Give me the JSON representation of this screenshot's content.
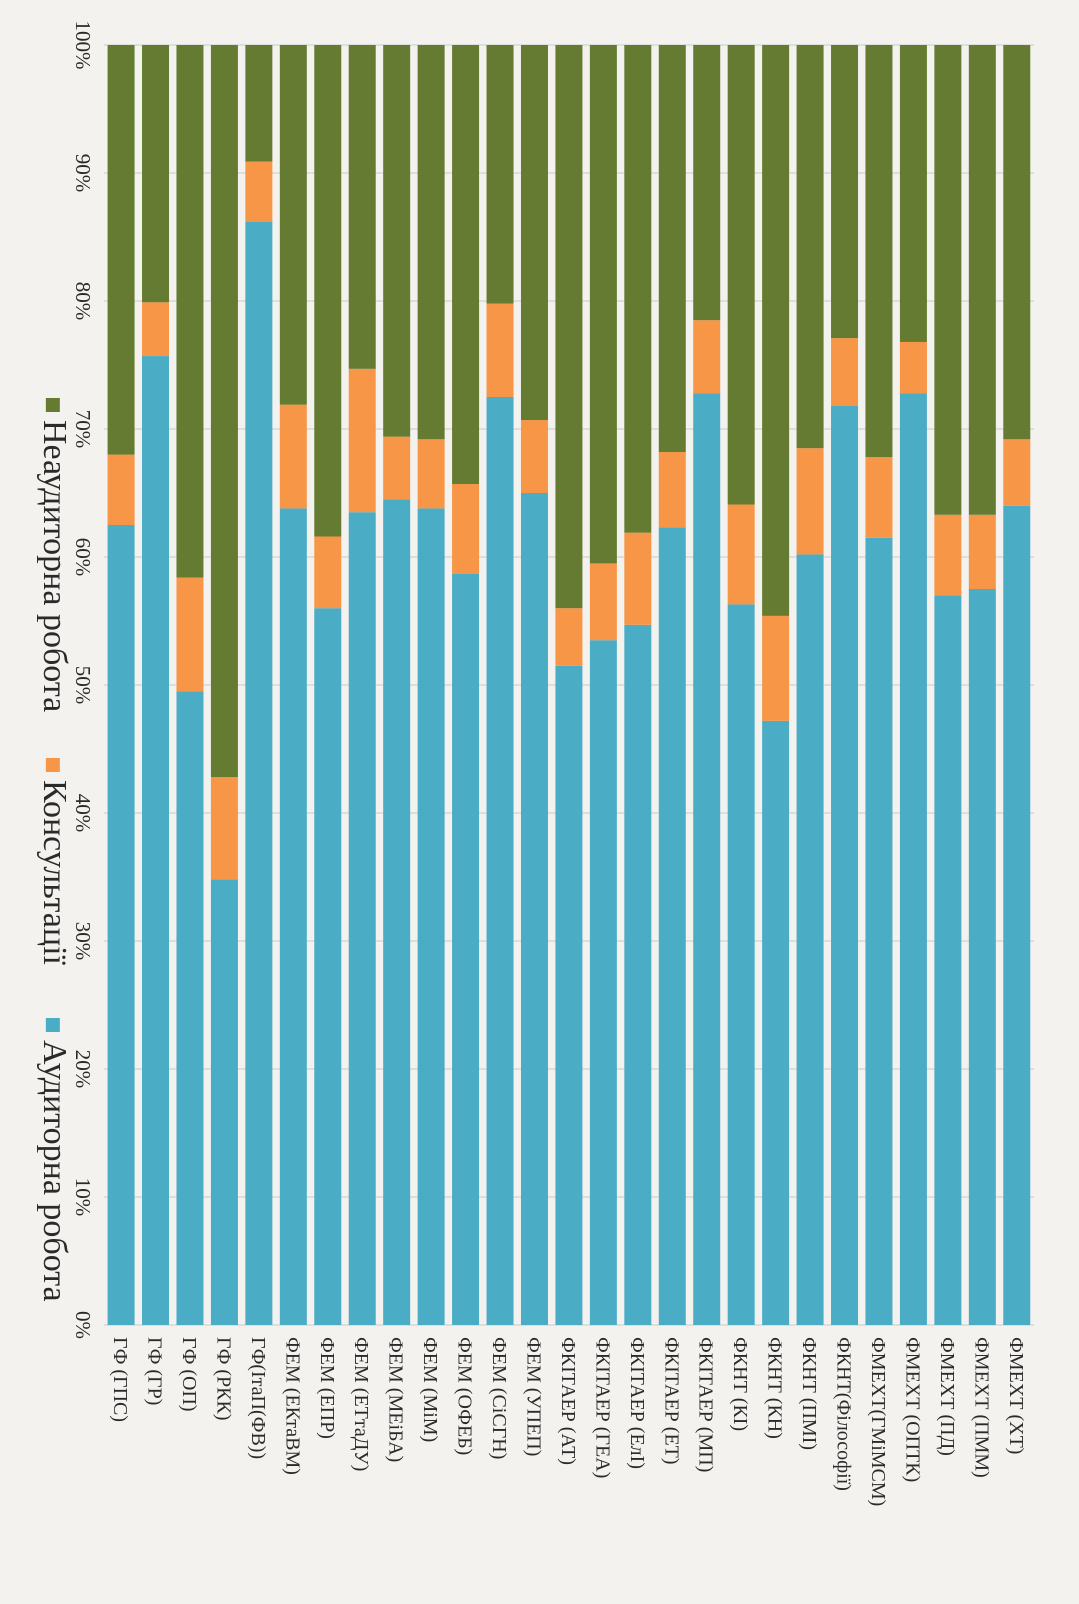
{
  "chart_data": {
    "type": "bar",
    "stacked": true,
    "orientation": "horizontal-percent, rotated 90° clockwise",
    "categories": [
      "ФМЕХТ (ХТ)",
      "ФМЕХТ (ПММ)",
      "ФМЕХТ (ПД)",
      "ФМЕХТ (ОПТК)",
      "ФМЕХТ(ГМіМСМ)",
      "ФКНТ(Філософії)",
      "ФКНТ (ПМІ)",
      "ФКНТ (КН)",
      "ФКНТ (КІ)",
      "ФКІТАЕР (МП)",
      "ФКІТАЕР (ЕТ)",
      "ФКІТАЕР (ЕлІ)",
      "ФКІТАЕР (ГЕА)",
      "ФКІТАЕР (АТ)",
      "ФЕМ (УПЕП)",
      "ФЕМ (СіСГН)",
      "ФЕМ (ОФЕБ)",
      "ФЕМ (МіМ)",
      "ФЕМ (МЕіБА)",
      "ФЕМ (ЕТтаДУ)",
      "ФЕМ (ЕПР)",
      "ФЕМ (ЕКтаВМ)",
      "ГФ(ІтаП(ФВ))",
      "ГФ (РКК)",
      "ГФ (ОП)",
      "ГФ (ГР)",
      "ГФ (ГПС)"
    ],
    "series": [
      {
        "name": "Аудиторна робота",
        "color": "#4bacc6",
        "values": [
          64,
          57.5,
          57,
          72.8,
          61.5,
          71.8,
          60.2,
          47.2,
          56.3,
          72.8,
          62.3,
          54.7,
          53.5,
          51.5,
          65,
          72.5,
          58.7,
          63.8,
          64.5,
          63.5,
          56,
          63.8,
          86.2,
          34.8,
          49.5,
          75.7,
          62.5
        ]
      },
      {
        "name": "Консультації",
        "color": "#f79646",
        "values": [
          5.2,
          5.8,
          6.3,
          4,
          6.3,
          5.3,
          8.3,
          8.2,
          7.8,
          5.7,
          5.9,
          7.2,
          6,
          4.5,
          5.7,
          7.3,
          7,
          5.4,
          4.9,
          11.2,
          5.6,
          8.1,
          4.7,
          8,
          8.9,
          4.2,
          5.5
        ]
      },
      {
        "name": "Неаудиторна робота",
        "color": "#657b32",
        "values": [
          30.8,
          36.7,
          36.7,
          23.2,
          32.2,
          22.9,
          31.5,
          44.6,
          35.9,
          21.5,
          31.8,
          38.1,
          40.5,
          44,
          29.3,
          20.2,
          34.3,
          30.8,
          30.6,
          25.3,
          38.4,
          28.1,
          9.1,
          57.2,
          41.6,
          20.1,
          32
        ]
      }
    ],
    "ticks": [
      "0%",
      "10%",
      "20%",
      "30%",
      "40%",
      "50%",
      "60%",
      "70%",
      "80%",
      "90%",
      "100%"
    ],
    "ylim": [
      0,
      100
    ],
    "title": "",
    "xlabel": "",
    "ylabel": "",
    "legend_position": "right"
  }
}
